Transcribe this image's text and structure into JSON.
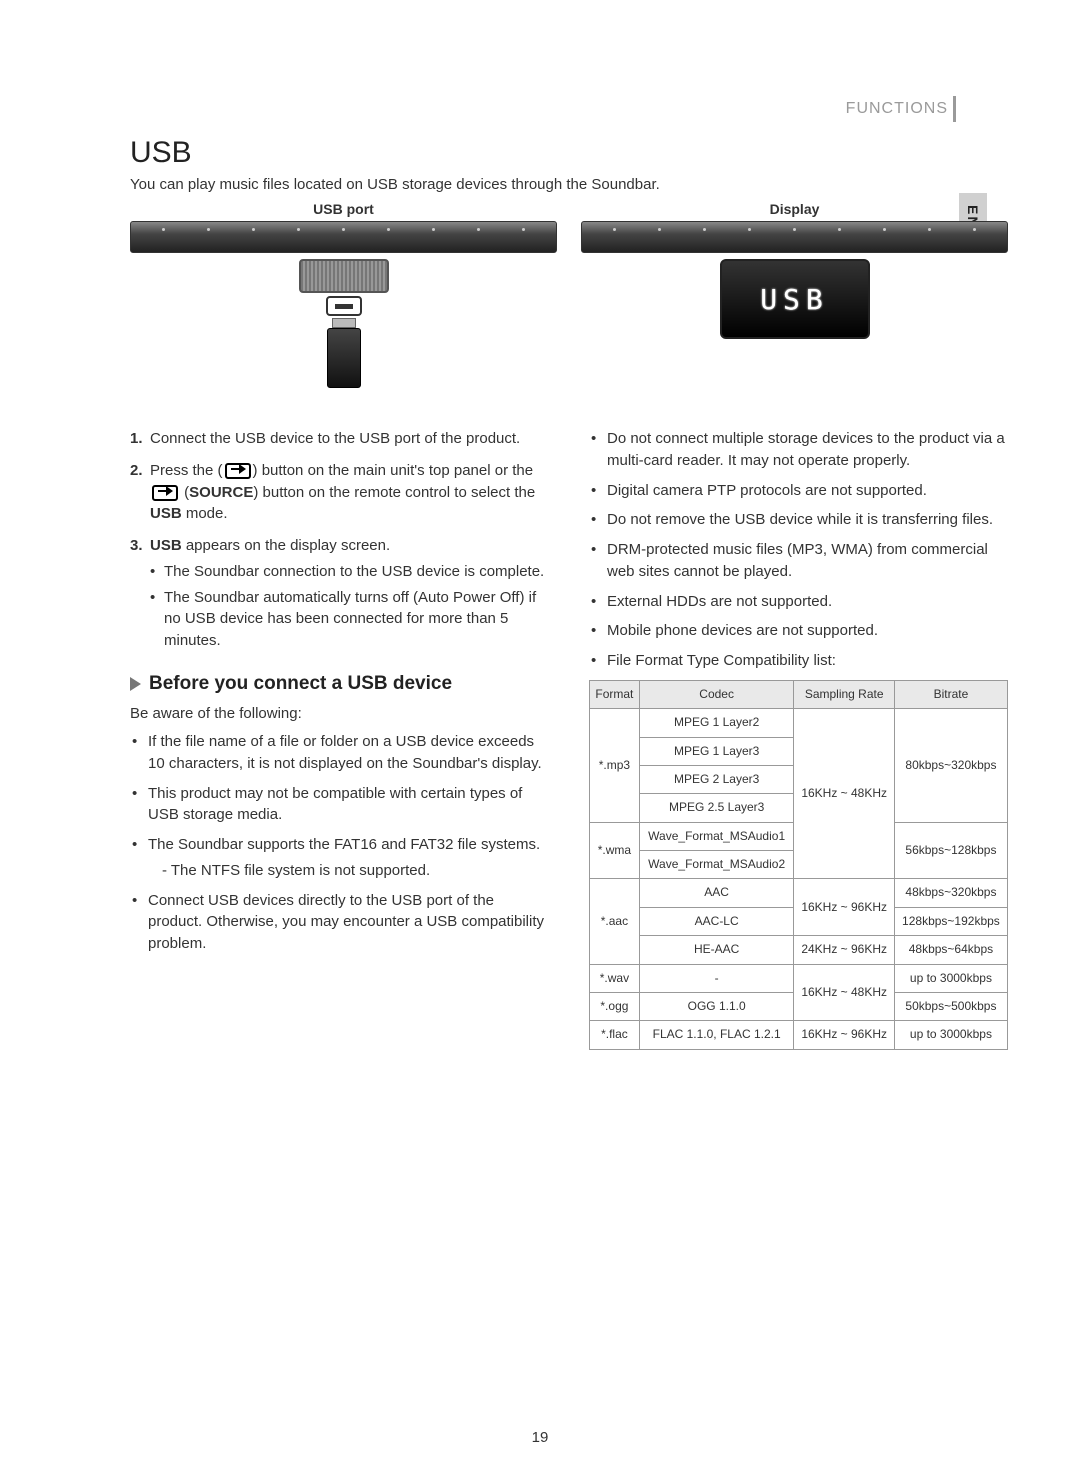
{
  "header": {
    "section": "FUNCTIONS",
    "lang_tab": "ENG"
  },
  "title": "USB",
  "intro": "You can play music files located on USB storage devices through the Soundbar.",
  "diagram": {
    "usb_port_label": "USB port",
    "display_label": "Display",
    "display_text": "USB"
  },
  "left": {
    "steps": [
      {
        "num": "1.",
        "text": "Connect the USB device to the USB port of the product."
      },
      {
        "num": "2.",
        "pre": "Press the (",
        "mid1": ") button on the main unit's top panel or the ",
        "source_bold": "SOURCE",
        "mid2": ") button on the remote control to select the ",
        "usb_bold": "USB",
        "post": " mode."
      },
      {
        "num": "3.",
        "usb_bold": "USB",
        "text": " appears on the display screen.",
        "subs": [
          "The Soundbar connection to the USB device is complete.",
          "The Soundbar automatically turns off (Auto Power Off) if no USB device has been connected for more than 5 minutes."
        ]
      }
    ],
    "sub_heading": "Before you connect a USB device",
    "aware": "Be aware of the following:",
    "bullets": [
      "If the file name of a file or folder on a USB device exceeds 10 characters, it is not displayed on the Soundbar's display.",
      "This product may not be compatible with certain types of USB storage media.",
      "The Soundbar supports the FAT16 and FAT32 file systems.",
      "Connect USB devices directly to the USB port of the product. Otherwise, you may encounter a USB compatibility problem."
    ],
    "ntfs_note": "- The NTFS file system is not supported."
  },
  "right": {
    "bullets": [
      "Do not connect multiple storage devices to the product via a multi-card reader. It may not operate properly.",
      "Digital camera PTP protocols are not supported.",
      "Do not remove the USB device while it is transferring files.",
      "DRM-protected music files (MP3, WMA) from commercial web sites cannot be played.",
      "External HDDs are not supported.",
      "Mobile phone devices are not supported.",
      "File Format Type Compatibility list:"
    ]
  },
  "table": {
    "headers": [
      "Format",
      "Codec",
      "Sampling Rate",
      "Bitrate"
    ],
    "rows": [
      {
        "format": "*.mp3",
        "format_rows": 4,
        "codec": "MPEG 1 Layer2",
        "rate": "16KHz ~ 48KHz",
        "rate_rows": 6,
        "bitrate": "80kbps~320kbps",
        "bitrate_rows": 4
      },
      {
        "codec": "MPEG 1 Layer3"
      },
      {
        "codec": "MPEG 2 Layer3"
      },
      {
        "codec": "MPEG 2.5 Layer3"
      },
      {
        "format": "*.wma",
        "format_rows": 2,
        "codec": "Wave_Format_MSAudio1",
        "bitrate": "56kbps~128kbps",
        "bitrate_rows": 2
      },
      {
        "codec": "Wave_Format_MSAudio2"
      },
      {
        "format": "*.aac",
        "format_rows": 3,
        "codec": "AAC",
        "rate": "16KHz ~ 96KHz",
        "rate_rows": 2,
        "bitrate": "48kbps~320kbps"
      },
      {
        "codec": "AAC-LC",
        "bitrate": "128kbps~192kbps"
      },
      {
        "codec": "HE-AAC",
        "rate": "24KHz ~ 96KHz",
        "bitrate": "48kbps~64kbps"
      },
      {
        "format": "*.wav",
        "codec": "-",
        "rate": "16KHz ~ 48KHz",
        "rate_rows": 2,
        "bitrate": "up to 3000kbps"
      },
      {
        "format": "*.ogg",
        "codec": "OGG 1.1.0",
        "bitrate": "50kbps~500kbps"
      },
      {
        "format": "*.flac",
        "codec": "FLAC 1.1.0, FLAC 1.2.1",
        "rate": "16KHz ~ 96KHz",
        "bitrate": "up to 3000kbps"
      }
    ]
  },
  "page_number": "19",
  "open_paren": " ("
}
